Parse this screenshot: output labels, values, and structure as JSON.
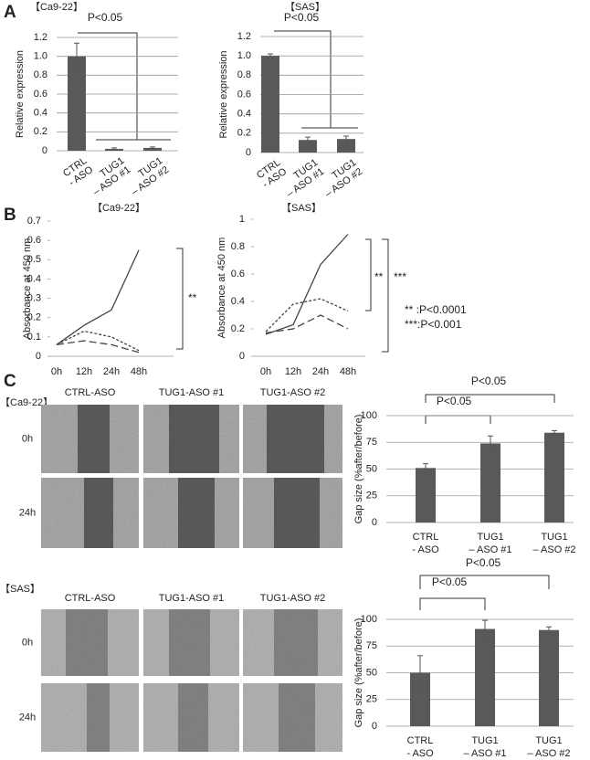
{
  "panel_labels": [
    "A",
    "B",
    "C"
  ],
  "micrographs": [
    {
      "label": "【Ca9-22】",
      "columns": [
        "CTRL-ASO",
        "TUG1-ASO #1",
        "TUG1-ASO #2"
      ],
      "rows": [
        "0h",
        "24h"
      ]
    },
    {
      "label": "【SAS】",
      "columns": [
        "CTRL-ASO",
        "TUG1-ASO #1",
        "TUG1-ASO #2"
      ],
      "rows": [
        "0h",
        "24h"
      ]
    }
  ],
  "chart_data": [
    {
      "type": "bar",
      "title": "【Ca9-22】",
      "ylabel": "Relative expression",
      "categories": [
        [
          "CTRL",
          "- ASO"
        ],
        [
          "TUG1",
          "– ASO #1"
        ],
        [
          "TUG1",
          "– ASO #2"
        ]
      ],
      "values": [
        1.0,
        0.02,
        0.03
      ],
      "errors": [
        0.14,
        0.01,
        0.01
      ],
      "color": "#595959",
      "ylim": [
        0,
        1.2
      ],
      "yticks": [
        0,
        0.2,
        0.4,
        0.6,
        0.8,
        {
          "value": 1,
          "label": "1.0"
        },
        1.2
      ],
      "grid": true,
      "annotations": [
        "P<0.05"
      ]
    },
    {
      "type": "bar",
      "title": "【SAS】",
      "ylabel": "Relative expression",
      "categories": [
        [
          "CTRL",
          "- ASO"
        ],
        [
          "TUG1",
          "– ASO #1"
        ],
        [
          "TUG1",
          "– ASO #2"
        ]
      ],
      "values": [
        1.0,
        0.13,
        0.14
      ],
      "errors": [
        0.02,
        0.03,
        0.03
      ],
      "color": "#595959",
      "ylim": [
        0,
        1.2
      ],
      "yticks": [
        0,
        0.2,
        0.4,
        0.6,
        0.8,
        {
          "value": 1,
          "label": "1.0"
        },
        1.2
      ],
      "grid": true,
      "annotations": [
        "P<0.05"
      ]
    },
    {
      "type": "line",
      "title": "【Ca9-22】",
      "ylabel": "Absorbance at 450 nm",
      "categories": [
        "0h",
        "12h",
        "24h",
        "48h"
      ],
      "series": [
        {
          "color": "#444444",
          "dash": "solid",
          "values": [
            0.06,
            0.16,
            0.24,
            0.55
          ]
        },
        {
          "color": "#444444",
          "dash": "short-dash",
          "values": [
            0.06,
            0.13,
            0.1,
            0.03
          ]
        },
        {
          "color": "#444444",
          "dash": "long-dash",
          "values": [
            0.06,
            0.08,
            0.06,
            0.02
          ]
        }
      ],
      "ylim": [
        0,
        0.7
      ],
      "yticks": [
        0,
        0.1,
        0.2,
        0.3,
        0.4,
        0.5,
        0.6,
        0.7
      ],
      "grid": false,
      "annotations": [
        "**"
      ]
    },
    {
      "type": "line",
      "title": "【SAS】",
      "ylabel": "Absorbance at 450 nm",
      "categories": [
        "0h",
        "12h",
        "24h",
        "48h"
      ],
      "series": [
        {
          "color": "#444444",
          "dash": "solid",
          "values": [
            0.16,
            0.23,
            0.67,
            0.89
          ]
        },
        {
          "color": "#444444",
          "dash": "short-dash",
          "values": [
            0.18,
            0.38,
            0.42,
            0.33
          ]
        },
        {
          "color": "#444444",
          "dash": "long-dash",
          "values": [
            0.17,
            0.2,
            0.3,
            0.2
          ]
        }
      ],
      "ylim": [
        0,
        1
      ],
      "yticks": [
        0,
        0.2,
        0.4,
        0.6,
        0.8,
        1
      ],
      "grid": false,
      "annotations": [
        "**",
        "***",
        "** :P<0.0001",
        "***:P<0.001"
      ]
    },
    {
      "type": "bar",
      "ylabel": "Gap size (%after/before)",
      "categories": [
        [
          "CTRL",
          "- ASO"
        ],
        [
          "TUG1",
          "– ASO #1"
        ],
        [
          "TUG1",
          "– ASO #2"
        ]
      ],
      "values": [
        51,
        74,
        84
      ],
      "errors": [
        4,
        7,
        2
      ],
      "color": "#595959",
      "ylim": [
        0,
        100
      ],
      "yticks": [
        0,
        25,
        50,
        75,
        100
      ],
      "grid": true,
      "annotations": [
        "P<0.05",
        "P<0.05"
      ]
    },
    {
      "type": "bar",
      "ylabel": "Gap size (%after/before)",
      "categories": [
        [
          "CTRL",
          "- ASO"
        ],
        [
          "TUG1",
          "– ASO #1"
        ],
        [
          "TUG1",
          "– ASO #2"
        ]
      ],
      "values": [
        50,
        91,
        90
      ],
      "errors": [
        16,
        8,
        3
      ],
      "color": "#595959",
      "ylim": [
        0,
        100
      ],
      "yticks": [
        0,
        25,
        50,
        75,
        100
      ],
      "grid": true,
      "annotations": [
        "P<0.05",
        "P<0.05"
      ]
    }
  ]
}
